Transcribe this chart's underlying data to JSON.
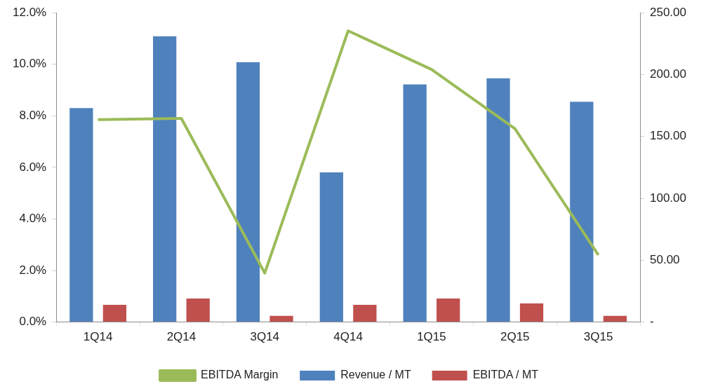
{
  "chart_data": {
    "type": "bar",
    "categories": [
      "1Q14",
      "2Q14",
      "3Q14",
      "4Q14",
      "1Q15",
      "2Q15",
      "3Q15"
    ],
    "series": [
      {
        "name": "Revenue / MT",
        "color": "#4f81bd",
        "axis": "y2",
        "values": [
          173,
          231,
          210,
          121,
          192,
          197,
          178
        ]
      },
      {
        "name": "EBITDA / MT",
        "color": "#c0504d",
        "axis": "y2",
        "values": [
          14,
          19,
          5,
          14,
          19,
          15,
          5
        ]
      },
      {
        "name": "EBITDA Margin",
        "type": "line",
        "color": "#9bbb59",
        "values": [
          7.85,
          7.9,
          1.9,
          11.3,
          9.8,
          7.5,
          2.6
        ]
      }
    ],
    "ylim": [
      0,
      12
    ],
    "yticks": [
      {
        "value": 0,
        "label": "0.0%"
      },
      {
        "value": 2,
        "label": "2.0%"
      },
      {
        "value": 4,
        "label": "4.0%"
      },
      {
        "value": 6,
        "label": "6.0%"
      },
      {
        "value": 8,
        "label": "8.0%"
      },
      {
        "value": 10,
        "label": "10.0%"
      },
      {
        "value": 12,
        "label": "12.0%"
      }
    ],
    "y2lim": [
      0,
      250
    ],
    "y2ticks": [
      {
        "value": 0,
        "label": "-"
      },
      {
        "value": 50,
        "label": "50.00"
      },
      {
        "value": 100,
        "label": "100.00"
      },
      {
        "value": 150,
        "label": "150.00"
      },
      {
        "value": 200,
        "label": "200.00"
      },
      {
        "value": 250,
        "label": "250.00"
      }
    ],
    "grid": false,
    "legend": "bottom",
    "marker": "none"
  }
}
